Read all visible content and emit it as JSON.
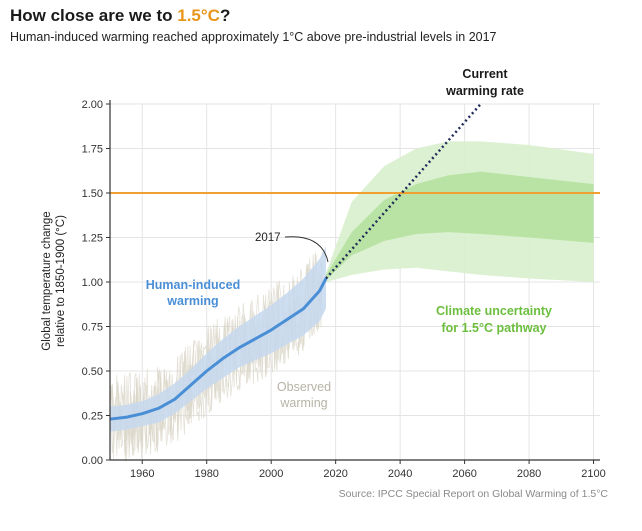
{
  "header": {
    "title_prefix": "How close are we to ",
    "title_highlight": "1.5°C",
    "title_suffix": "?",
    "subtitle": "Human-induced warming reached approximately 1°C above pre-industrial levels in 2017"
  },
  "colors": {
    "human_line": "#4a8fd6",
    "human_band": "#c5d8ee",
    "outer_band": "#d8f0cd",
    "inner_band": "#b5e19f",
    "threshold": "#f0a030",
    "rate_line": "#1f2a5a",
    "observed": "#d9d4c6"
  },
  "chart_data": {
    "type": "line",
    "title": "How close are we to 1.5°C?",
    "ylabel": "Global temperature change relative to 1850-1900 (°C)",
    "xlabel": "",
    "xlim": [
      1950,
      2102
    ],
    "ylim": [
      0,
      2.0
    ],
    "x_ticks": [
      1960,
      1980,
      2000,
      2020,
      2040,
      2060,
      2080,
      2100
    ],
    "y_ticks": [
      "0.00",
      "0.25",
      "0.50",
      "0.75",
      "1.00",
      "1.25",
      "1.50",
      "1.75",
      "2.00"
    ],
    "grid": true,
    "threshold": {
      "y": 1.5
    },
    "series": [
      {
        "name": "Human-induced warming",
        "x": [
          1950,
          1955,
          1960,
          1965,
          1970,
          1975,
          1980,
          1985,
          1990,
          1995,
          2000,
          2005,
          2010,
          2015,
          2017
        ],
        "values": [
          0.23,
          0.24,
          0.26,
          0.29,
          0.34,
          0.42,
          0.5,
          0.57,
          0.63,
          0.68,
          0.73,
          0.79,
          0.85,
          0.95,
          1.02
        ],
        "band_upper": [
          0.3,
          0.31,
          0.33,
          0.37,
          0.43,
          0.51,
          0.6,
          0.68,
          0.75,
          0.81,
          0.87,
          0.94,
          1.02,
          1.13,
          1.2
        ],
        "band_lower": [
          0.16,
          0.17,
          0.19,
          0.21,
          0.26,
          0.33,
          0.4,
          0.46,
          0.52,
          0.56,
          0.6,
          0.65,
          0.7,
          0.78,
          0.85
        ]
      },
      {
        "name": "Current warming rate",
        "x": [
          2017,
          2065
        ],
        "values": [
          1.02,
          2.0
        ]
      },
      {
        "name": "Climate uncertainty for 1.5°C pathway",
        "x": [
          2017,
          2025,
          2035,
          2045,
          2055,
          2065,
          2080,
          2100
        ],
        "outer_upper": [
          1.05,
          1.45,
          1.65,
          1.75,
          1.79,
          1.79,
          1.77,
          1.72
        ],
        "outer_lower": [
          1.0,
          1.04,
          1.07,
          1.08,
          1.06,
          1.04,
          1.02,
          1.0
        ],
        "inner_upper": [
          1.04,
          1.28,
          1.46,
          1.55,
          1.6,
          1.62,
          1.59,
          1.55
        ],
        "inner_lower": [
          1.01,
          1.15,
          1.23,
          1.27,
          1.28,
          1.27,
          1.25,
          1.22
        ]
      }
    ],
    "annotations": {
      "human": [
        "Human-induced",
        "warming"
      ],
      "observed": [
        "Observed",
        "warming"
      ],
      "uncertainty": [
        "Climate uncertainty",
        "for 1.5°C pathway"
      ],
      "rate": [
        "Current",
        "warming rate"
      ],
      "year": "2017"
    },
    "source": "Source: IPCC Special Report on Global Warming of 1.5°C"
  }
}
